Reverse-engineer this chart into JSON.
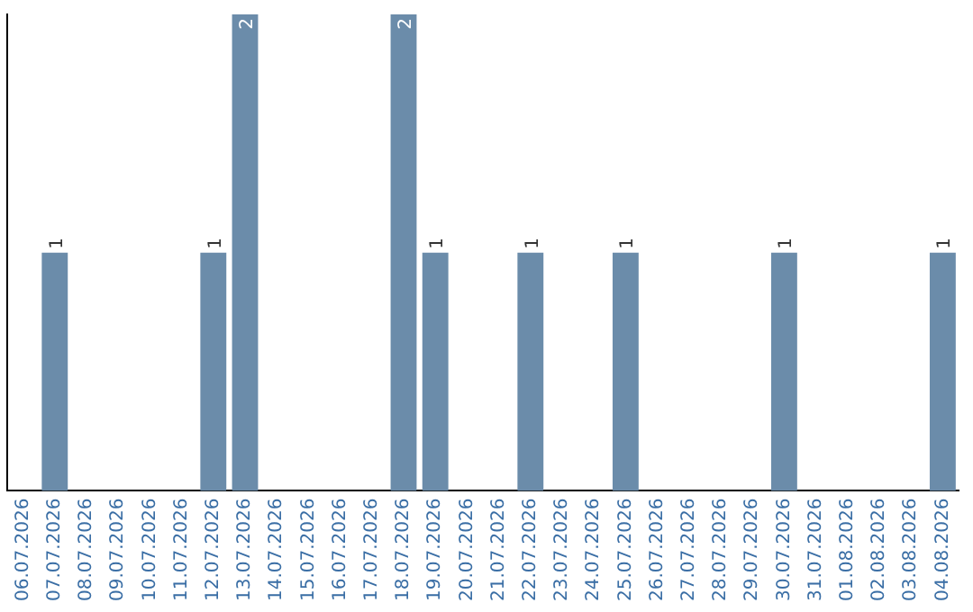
{
  "chart_data": {
    "type": "bar",
    "categories": [
      "06.07.2026",
      "07.07.2026",
      "08.07.2026",
      "09.07.2026",
      "10.07.2026",
      "11.07.2026",
      "12.07.2026",
      "13.07.2026",
      "14.07.2026",
      "15.07.2026",
      "16.07.2026",
      "17.07.2026",
      "18.07.2026",
      "19.07.2026",
      "20.07.2026",
      "21.07.2026",
      "22.07.2026",
      "23.07.2026",
      "24.07.2026",
      "25.07.2026",
      "26.07.2026",
      "27.07.2026",
      "28.07.2026",
      "29.07.2026",
      "30.07.2026",
      "31.07.2026",
      "01.08.2026",
      "02.08.2026",
      "03.08.2026",
      "04.08.2026"
    ],
    "values": [
      0,
      1,
      0,
      0,
      0,
      0,
      1,
      2,
      0,
      0,
      0,
      0,
      2,
      1,
      0,
      0,
      1,
      0,
      0,
      1,
      0,
      0,
      0,
      0,
      1,
      0,
      0,
      0,
      0,
      1
    ],
    "value_labels": [
      null,
      "1",
      null,
      null,
      null,
      null,
      "1",
      "2",
      null,
      null,
      null,
      null,
      "2",
      "1",
      null,
      null,
      "1",
      null,
      null,
      "1",
      null,
      null,
      null,
      null,
      "1",
      null,
      null,
      null,
      null,
      "1"
    ],
    "color": "#6b8caa",
    "grid": false,
    "legend": false,
    "tick_labels": "x"
  }
}
